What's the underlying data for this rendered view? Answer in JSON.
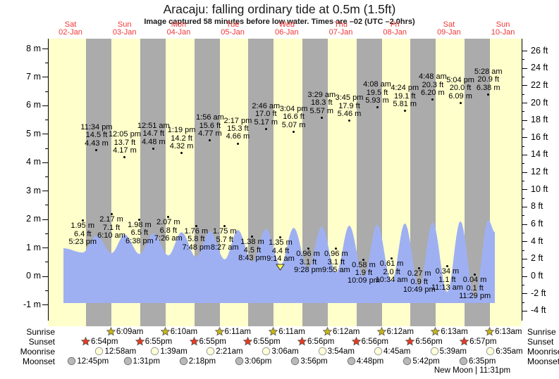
{
  "title": "Aracaju: falling ordinary tide at 0.5m (1.5ft)",
  "subtitle": "Image captured 58 minutes before low water. Times are –02 (UTC –2.0hrs)",
  "chart_data": {
    "type": "area",
    "title": "Aracaju: falling ordinary tide at 0.5m (1.5ft)",
    "subtitle": "Image captured 58 minutes before low water. Times are –02 (UTC –2.0hrs)",
    "y_axis_left": {
      "unit": "m",
      "lim": [
        -1,
        8
      ],
      "ticks": [
        8,
        7,
        6,
        5,
        4,
        3,
        2,
        1,
        0,
        -1
      ]
    },
    "y_axis_right": {
      "unit": "ft",
      "ticks": [
        26,
        24,
        22,
        20,
        18,
        16,
        14,
        12,
        10,
        8,
        6,
        4,
        2,
        0,
        -2,
        -4
      ]
    },
    "grid": false,
    "days": [
      {
        "name": "Sat",
        "date": "02-Jan"
      },
      {
        "name": "Sun",
        "date": "03-Jan"
      },
      {
        "name": "Mon",
        "date": "04-Jan"
      },
      {
        "name": "Tue",
        "date": "05-Jan"
      },
      {
        "name": "Wed",
        "date": "06-Jan"
      },
      {
        "name": "Thu",
        "date": "07-Jan"
      },
      {
        "name": "Fri",
        "date": "08-Jan"
      },
      {
        "name": "Sat",
        "date": "09-Jan"
      },
      {
        "name": "Sun",
        "date": "10-Jan"
      }
    ],
    "high_tides": [
      {
        "day": 0,
        "time": "11:34 pm",
        "ft": 14.5,
        "m": 4.43
      },
      {
        "day": 1,
        "time": "12:05 pm",
        "ft": 13.7,
        "m": 4.17
      },
      {
        "day": 2,
        "time": "12:51 am",
        "ft": 14.7,
        "m": 4.48
      },
      {
        "day": 2,
        "time": "1:19 pm",
        "ft": 14.2,
        "m": 4.32
      },
      {
        "day": 3,
        "time": "1:56 am",
        "ft": 15.6,
        "m": 4.77
      },
      {
        "day": 3,
        "time": "2:17 pm",
        "ft": 15.3,
        "m": 4.66
      },
      {
        "day": 4,
        "time": "2:46 am",
        "ft": 17.0,
        "m": 5.17
      },
      {
        "day": 4,
        "time": "3:04 pm",
        "ft": 16.6,
        "m": 5.07
      },
      {
        "day": 5,
        "time": "3:29 am",
        "ft": 18.3,
        "m": 5.57
      },
      {
        "day": 5,
        "time": "3:45 pm",
        "ft": 17.9,
        "m": 5.46
      },
      {
        "day": 6,
        "time": "4:08 am",
        "ft": 19.5,
        "m": 5.93
      },
      {
        "day": 6,
        "time": "4:24 pm",
        "ft": 19.1,
        "m": 5.81
      },
      {
        "day": 7,
        "time": "4:48 am",
        "ft": 20.3,
        "m": 6.2
      },
      {
        "day": 7,
        "time": "5:04 pm",
        "ft": 20.0,
        "m": 6.09
      },
      {
        "day": 8,
        "time": "5:28 am",
        "ft": 20.9,
        "m": 6.38
      }
    ],
    "low_tides": [
      {
        "day": 0,
        "time": "5:23 pm",
        "ft": 6.4,
        "m": 1.95
      },
      {
        "day": 1,
        "time": "6:10 am",
        "ft": 7.1,
        "m": 2.17
      },
      {
        "day": 1,
        "time": "6:38 pm",
        "ft": 6.5,
        "m": 1.98
      },
      {
        "day": 2,
        "time": "7:26 am",
        "ft": 6.8,
        "m": 2.07
      },
      {
        "day": 2,
        "time": "7:48 pm",
        "ft": 5.8,
        "m": 1.76
      },
      {
        "day": 3,
        "time": "8:27 am",
        "ft": 5.7,
        "m": 1.75
      },
      {
        "day": 3,
        "time": "8:43 pm",
        "ft": 4.5,
        "m": 1.38
      },
      {
        "day": 4,
        "time": "9:14 am",
        "ft": 4.4,
        "m": 1.35,
        "marker": true
      },
      {
        "day": 4,
        "time": "9:28 pm",
        "ft": 3.1,
        "m": 0.96
      },
      {
        "day": 5,
        "time": "9:55 am",
        "ft": 3.1,
        "m": 0.96
      },
      {
        "day": 5,
        "time": "10:09 pm",
        "ft": 1.9,
        "m": 0.58
      },
      {
        "day": 6,
        "time": "10:34 am",
        "ft": 2.0,
        "m": 0.61
      },
      {
        "day": 6,
        "time": "10:49 pm",
        "ft": 0.9,
        "m": 0.27
      },
      {
        "day": 7,
        "time": "11:13 am",
        "ft": 1.1,
        "m": 0.34
      },
      {
        "day": 7,
        "time": "11:29 pm",
        "ft": 0.1,
        "m": 0.04
      }
    ],
    "sun_moon": {
      "rows": [
        {
          "label": "Sunrise",
          "icon": "sunrise-icon",
          "entries": [
            {
              "day": 1,
              "time": "6:09am"
            },
            {
              "day": 2,
              "time": "6:10am"
            },
            {
              "day": 3,
              "time": "6:11am"
            },
            {
              "day": 4,
              "time": "6:11am"
            },
            {
              "day": 5,
              "time": "6:12am"
            },
            {
              "day": 6,
              "time": "6:12am"
            },
            {
              "day": 7,
              "time": "6:13am"
            },
            {
              "day": 8,
              "time": "6:13am"
            }
          ]
        },
        {
          "label": "Sunset",
          "icon": "sunset-icon",
          "entries": [
            {
              "day": 0,
              "time": "6:54pm"
            },
            {
              "day": 1,
              "time": "6:55pm"
            },
            {
              "day": 2,
              "time": "6:55pm"
            },
            {
              "day": 3,
              "time": "6:55pm"
            },
            {
              "day": 4,
              "time": "6:56pm"
            },
            {
              "day": 5,
              "time": "6:56pm"
            },
            {
              "day": 6,
              "time": "6:56pm"
            },
            {
              "day": 7,
              "time": "6:57pm"
            }
          ]
        },
        {
          "label": "Moonrise",
          "icon": "moonrise-icon",
          "entries": [
            {
              "day": 1,
              "time": "12:58am"
            },
            {
              "day": 2,
              "time": "1:39am"
            },
            {
              "day": 3,
              "time": "2:21am"
            },
            {
              "day": 4,
              "time": "3:06am"
            },
            {
              "day": 5,
              "time": "3:54am"
            },
            {
              "day": 6,
              "time": "4:45am"
            },
            {
              "day": 7,
              "time": "5:39am"
            },
            {
              "day": 8,
              "time": "6:35am"
            }
          ]
        },
        {
          "label": "Moonset",
          "icon": "moonset-icon",
          "entries": [
            {
              "day": 0,
              "time": "12:45pm"
            },
            {
              "day": 1,
              "time": "1:31pm"
            },
            {
              "day": 2,
              "time": "2:18pm"
            },
            {
              "day": 3,
              "time": "3:06pm"
            },
            {
              "day": 4,
              "time": "3:56pm"
            },
            {
              "day": 5,
              "time": "4:48pm"
            },
            {
              "day": 6,
              "time": "5:42pm"
            },
            {
              "day": 7,
              "time": "6:35pm"
            }
          ]
        }
      ],
      "new_moon_note": "New Moon | 11:31pm"
    },
    "colors": {
      "day_band": "#ffffcc",
      "night_band": "#ababab",
      "water": "#9fb0f2",
      "date_red": "#f23434",
      "sunrise_star": "#c7b418",
      "sunset_star": "#e53b22",
      "moonrise_fill": "#ffffd8",
      "moonset_fill": "#b9b9b9",
      "marker_triangle": "#ffff55"
    }
  }
}
